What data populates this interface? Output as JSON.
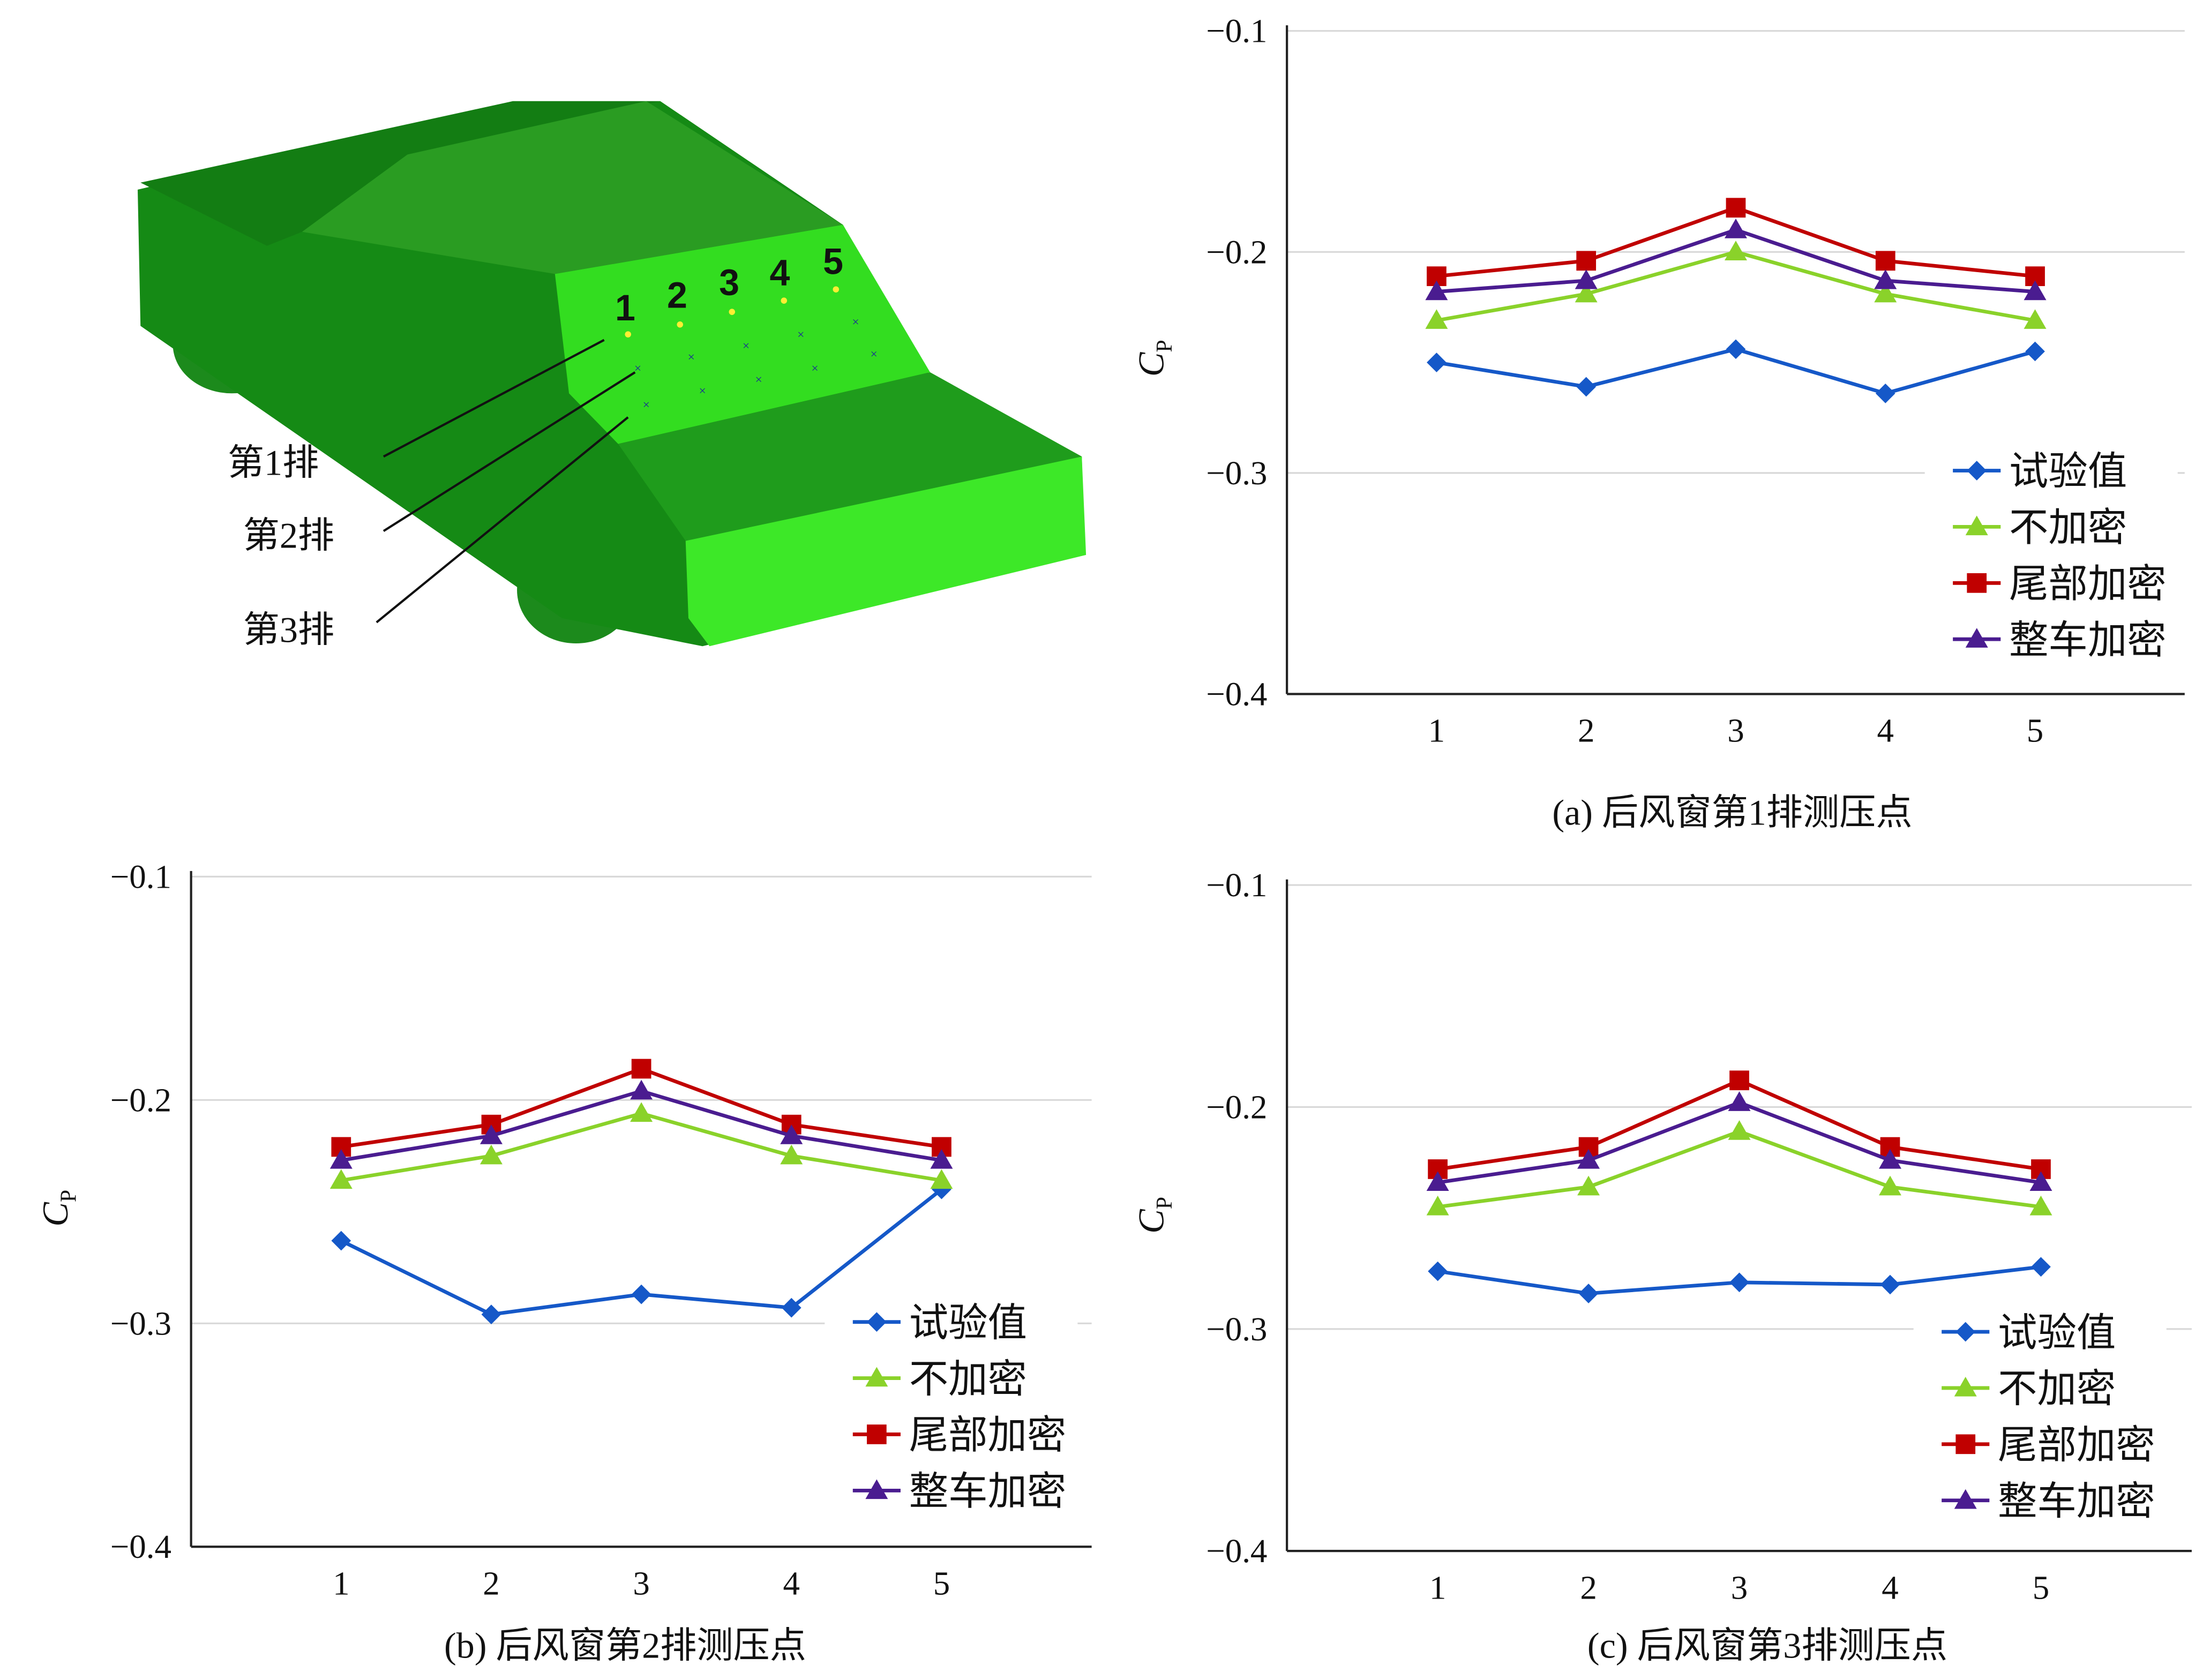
{
  "figure": {
    "car_labels": {
      "rows": [
        "第1排",
        "第2排",
        "第3排"
      ],
      "points": [
        "1",
        "2",
        "3",
        "4",
        "5"
      ]
    }
  },
  "colors": {
    "exp": "#1558c8",
    "none": "#8ad22a",
    "tail": "#c00000",
    "full": "#4a1c90"
  },
  "chart_data": [
    {
      "type": "line",
      "caption": "(a) 后风窗第1排测压点",
      "ylabel": "C",
      "ylabel_sub": "P",
      "xlabel": "",
      "categories": [
        "1",
        "2",
        "3",
        "4",
        "5"
      ],
      "ylim": [
        -0.4,
        -0.1
      ],
      "yticks": [
        "−0.1",
        "−0.2",
        "−0.3",
        "−0.4"
      ],
      "grid": true,
      "legend_position": "bottom-right",
      "series": [
        {
          "name": "试验值",
          "marker": "diamond",
          "color_key": "exp",
          "values": [
            -0.25,
            -0.261,
            -0.244,
            -0.264,
            -0.245
          ]
        },
        {
          "name": "不加密",
          "marker": "triangle",
          "color_key": "none",
          "values": [
            -0.231,
            -0.219,
            -0.2,
            -0.219,
            -0.231
          ]
        },
        {
          "name": "尾部加密",
          "marker": "square",
          "color_key": "tail",
          "values": [
            -0.211,
            -0.204,
            -0.18,
            -0.204,
            -0.211
          ]
        },
        {
          "name": "整车加密",
          "marker": "triangle",
          "color_key": "full",
          "values": [
            -0.218,
            -0.213,
            -0.19,
            -0.213,
            -0.218
          ]
        }
      ]
    },
    {
      "type": "line",
      "caption": "(b) 后风窗第2排测压点",
      "ylabel": "C",
      "ylabel_sub": "P",
      "xlabel": "",
      "categories": [
        "1",
        "2",
        "3",
        "4",
        "5"
      ],
      "ylim": [
        -0.4,
        -0.1
      ],
      "yticks": [
        "−0.1",
        "−0.2",
        "−0.3",
        "−0.4"
      ],
      "grid": true,
      "legend_position": "bottom-right",
      "series": [
        {
          "name": "试验值",
          "marker": "diamond",
          "color_key": "exp",
          "values": [
            -0.263,
            -0.296,
            -0.287,
            -0.293,
            -0.24
          ]
        },
        {
          "name": "不加密",
          "marker": "triangle",
          "color_key": "none",
          "values": [
            -0.236,
            -0.225,
            -0.206,
            -0.225,
            -0.236
          ]
        },
        {
          "name": "尾部加密",
          "marker": "square",
          "color_key": "tail",
          "values": [
            -0.221,
            -0.211,
            -0.186,
            -0.211,
            -0.221
          ]
        },
        {
          "name": "整车加密",
          "marker": "triangle",
          "color_key": "full",
          "values": [
            -0.227,
            -0.216,
            -0.196,
            -0.216,
            -0.227
          ]
        }
      ]
    },
    {
      "type": "line",
      "caption": "(c) 后风窗第3排测压点",
      "ylabel": "C",
      "ylabel_sub": "P",
      "xlabel": "",
      "categories": [
        "1",
        "2",
        "3",
        "4",
        "5"
      ],
      "ylim": [
        -0.4,
        -0.1
      ],
      "yticks": [
        "−0.1",
        "−0.2",
        "−0.3",
        "−0.4"
      ],
      "grid": true,
      "legend_position": "bottom-right",
      "series": [
        {
          "name": "试验值",
          "marker": "diamond",
          "color_key": "exp",
          "values": [
            -0.274,
            -0.284,
            -0.279,
            -0.28,
            -0.272
          ]
        },
        {
          "name": "不加密",
          "marker": "triangle",
          "color_key": "none",
          "values": [
            -0.245,
            -0.236,
            -0.211,
            -0.236,
            -0.245
          ]
        },
        {
          "name": "尾部加密",
          "marker": "square",
          "color_key": "tail",
          "values": [
            -0.228,
            -0.218,
            -0.188,
            -0.218,
            -0.228
          ]
        },
        {
          "name": "整车加密",
          "marker": "triangle",
          "color_key": "full",
          "values": [
            -0.234,
            -0.224,
            -0.198,
            -0.224,
            -0.234
          ]
        }
      ]
    }
  ]
}
